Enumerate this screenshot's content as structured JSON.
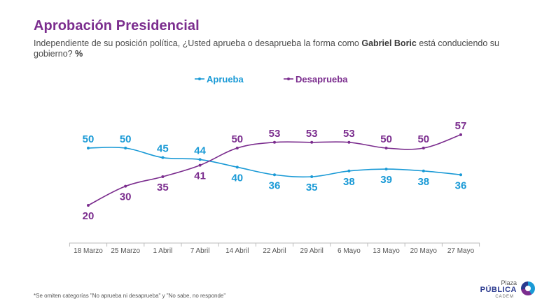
{
  "header": {
    "title": "Aprobación Presidencial",
    "subtitle_pre": "Independiente de su posición política, ¿Usted aprueba o desaprueba la forma como ",
    "subtitle_bold": "Gabriel Boric",
    "subtitle_post": " está conduciendo su gobierno? ",
    "subtitle_bold2": "%"
  },
  "footnote": "*Se omiten categorías \"No aprueba ni desaprueba\" y \"No sabe, no responde\"",
  "logo": {
    "line1": "Plaza",
    "line2": "PÚBLICA",
    "line3": "CADEM"
  },
  "colors": {
    "aprueba": "#1a9ad6",
    "desaprueba": "#7b2d8e",
    "axis": "#bbbbbb"
  },
  "chart_data": {
    "type": "line",
    "title": "Aprobación Presidencial",
    "x": [
      "18 Marzo",
      "25 Marzo",
      "1 Abril",
      "7 Abril",
      "14 Abril",
      "22 Abril",
      "29 Abril",
      "6 Mayo",
      "13 Mayo",
      "20 Mayo",
      "27 Mayo"
    ],
    "series": [
      {
        "name": "Aprueba",
        "values": [
          50,
          50,
          45,
          44,
          40,
          36,
          35,
          38,
          39,
          38,
          36
        ]
      },
      {
        "name": "Desaprueba",
        "values": [
          20,
          30,
          35,
          41,
          50,
          53,
          53,
          53,
          50,
          50,
          57
        ]
      }
    ],
    "legend": "top-center",
    "grid": false,
    "ylim": [
      10,
      65
    ]
  }
}
